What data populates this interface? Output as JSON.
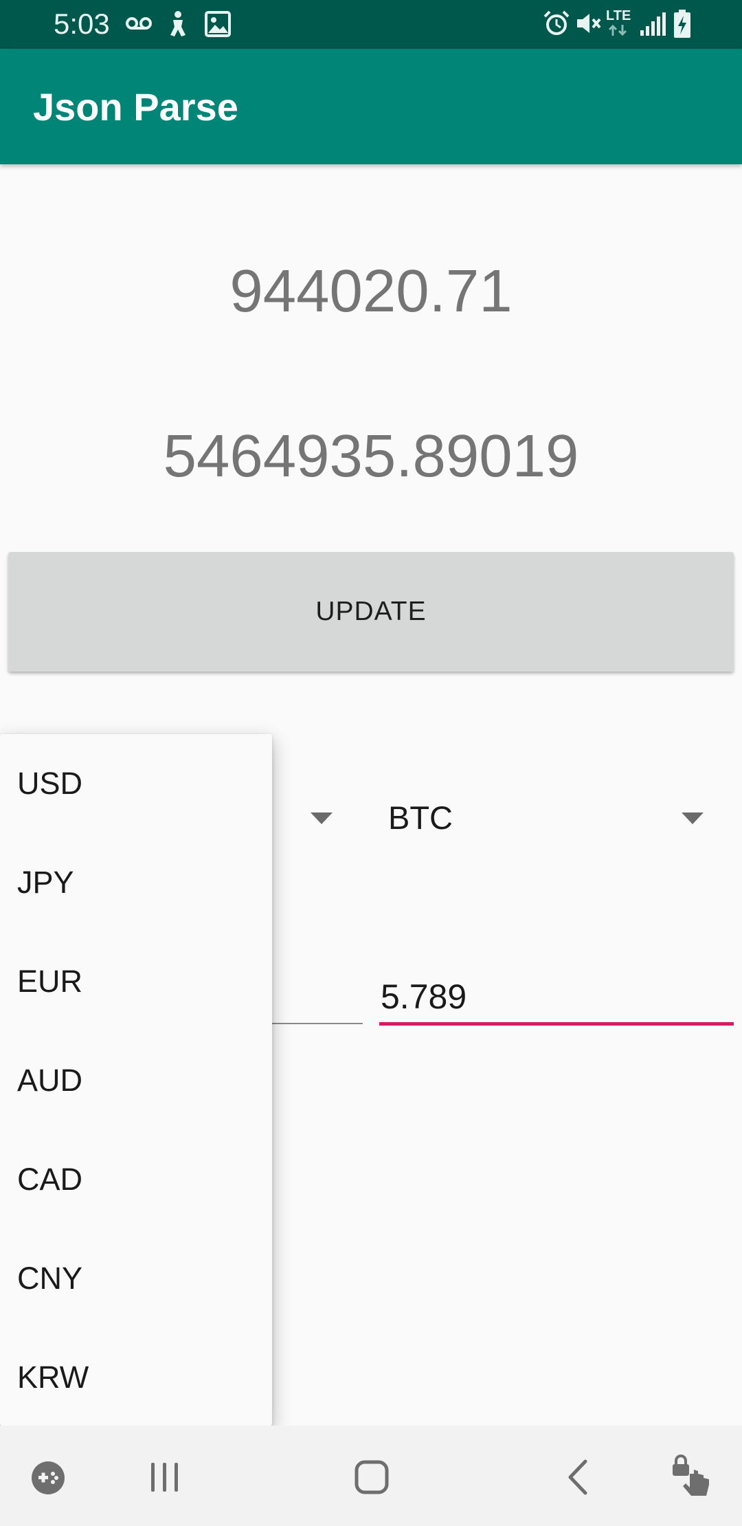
{
  "status_bar": {
    "time": "5:03",
    "network_label": "LTE",
    "icons": [
      "voicemail-icon",
      "accessibility-icon",
      "image-icon",
      "alarm-icon",
      "mute-icon",
      "lte-data-icon",
      "signal-icon",
      "battery-charging-icon"
    ]
  },
  "app_bar": {
    "title": "Json Parse"
  },
  "results": {
    "value_1": "944020.71",
    "value_2": "5464935.89019"
  },
  "update_button": {
    "label": "UPDATE"
  },
  "spinner_right": {
    "selected": "BTC"
  },
  "input_right": {
    "value": "5.789"
  },
  "dropdown": {
    "options": [
      "USD",
      "JPY",
      "EUR",
      "AUD",
      "CAD",
      "CNY",
      "KRW"
    ]
  },
  "nav_bar": {
    "icons": [
      "game-tools-icon",
      "recents-icon",
      "home-icon",
      "back-icon",
      "touch-lock-icon"
    ]
  },
  "colors": {
    "status_bar": "#00574b",
    "primary": "#008577",
    "accent": "#d81b60",
    "button": "#d6d7d7"
  }
}
